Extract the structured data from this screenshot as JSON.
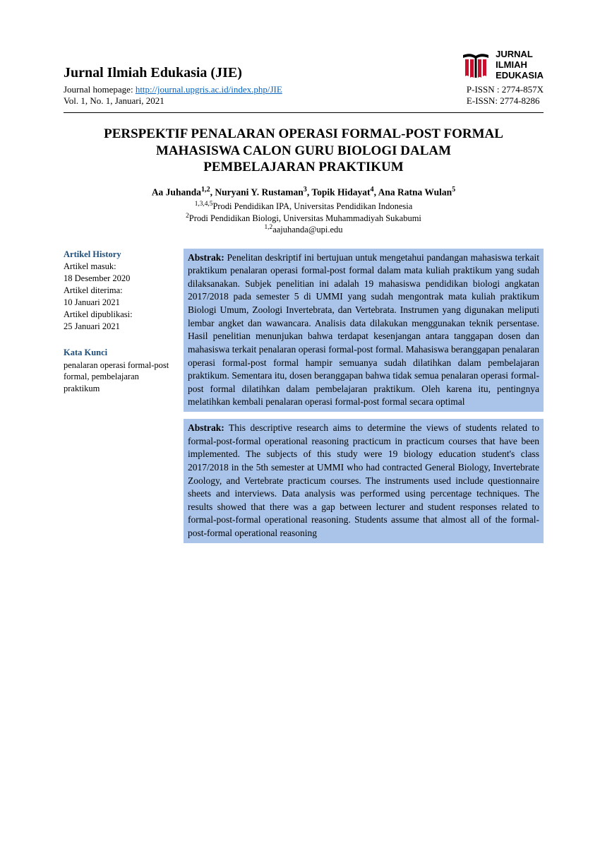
{
  "header": {
    "journal_name": "Jurnal Ilmiah Edukasia (JIE)",
    "homepage_label": "Journal homepage: ",
    "homepage_url": "http://journal.upgris.ac.id/index.php/JIE",
    "vol_line": "Vol. 1, No. 1, Januari, 2021",
    "pissn": "P-ISSN : 2774-857X",
    "eissn": "E-ISSN: 2774-8286",
    "logo_line1": "JURNAL",
    "logo_line2": "ILMIAH",
    "logo_line3": "EDUKASIA",
    "logo_colors": {
      "red": "#c8102e",
      "black": "#000000"
    }
  },
  "title": "PERSPEKTIF PENALARAN OPERASI FORMAL-POST FORMAL MAHASISWA CALON GURU BIOLOGI DALAM PEMBELAJARAN PRAKTIKUM",
  "authors_html": "Aa Juhanda<sup>1,2</sup>, Nuryani Y. Rustaman<sup>3</sup>, Topik Hidayat<sup>4</sup>, Ana Ratna Wulan<sup>5</sup>",
  "affil1_html": "<sup>1,3,4,5</sup>Prodi Pendidikan IPA, Universitas Pendidikan Indonesia",
  "affil2_html": "<sup>2</sup>Prodi Pendidikan Biologi, Universitas Muhammadiyah Sukabumi",
  "email_html": "<sup>1,2</sup>aajuhanda@upi.edu",
  "sidebar": {
    "history_heading": "Artikel History",
    "history_lines": "Artikel masuk:\n18 Desember 2020\nArtikel diterima:\n10 Januari 2021\nArtikel dipublikasi:\n25 Januari 2021",
    "keywords_heading": "Kata Kunci",
    "keywords_text": "penalaran operasi formal-post formal, pembelajaran praktikum"
  },
  "abstract_id": "<b>Abstrak:</b> Penelitan deskriptif ini bertujuan untuk mengetahui pandangan mahasiswa terkait praktikum penalaran operasi formal-post formal dalam mata kuliah praktikum yang sudah dilaksanakan. Subjek penelitian ini adalah 19 mahasiswa pendidikan biologi angkatan 2017/2018 pada semester 5 di UMMI yang sudah mengontrak mata kuliah praktikum Biologi Umum, Zoologi Invertebrata, dan Vertebrata. Instrumen yang digunakan meliputi lembar angket dan wawancara. Analisis data dilakukan menggunakan teknik persentase. Hasil penelitian menunjukan bahwa terdapat kesenjangan antara tanggapan dosen dan mahasiswa terkait penalaran operasi formal-post formal. Mahasiswa beranggapan penalaran operasi formal-post formal hampir semuanya sudah dilatihkan dalam pembelajaran praktikum. Sementara itu, dosen beranggapan bahwa tidak semua penalaran operasi formal-post formal dilatihkan dalam pembelajaran praktikum. Oleh karena itu, pentingnya melatihkan kembali penalaran operasi formal-post formal secara optimal",
  "abstract_en": "<b>Abstrak:</b> This descriptive research aims to determine the views of students related to formal-post-formal operational reasoning practicum in practicum courses that have been implemented. The subjects of this study were 19 biology education student's class 2017/2018 in the 5th semester at UMMI who had contracted General Biology, Invertebrate Zoology, and Vertebrate practicum courses. The instruments used include questionnaire sheets and interviews. Data analysis was performed using percentage techniques. The results showed that there was a gap between lecturer and student responses related to formal-post-formal operational reasoning. Students assume that almost all of the formal-post-formal operational reasoning",
  "colors": {
    "highlight_bg": "#a9c4e8",
    "heading_blue": "#1f4e79",
    "link_blue": "#0563c1",
    "text": "#000000",
    "background": "#ffffff"
  }
}
